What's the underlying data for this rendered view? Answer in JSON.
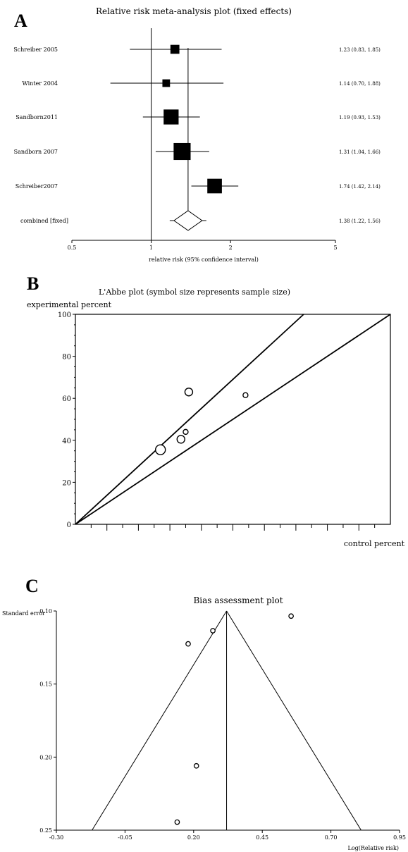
{
  "panels": {
    "a": {
      "letter": "A"
    },
    "b": {
      "letter": "B"
    },
    "c": {
      "letter": "C"
    }
  },
  "chart_data": [
    {
      "type": "forest",
      "title": "Relative risk meta-analysis plot (fixed effects)",
      "xlabel": "relative risk (95% confidence interval)",
      "xscale": "log",
      "xlim": [
        0.5,
        5
      ],
      "xticks": [
        "0.5",
        "1",
        "2",
        "5"
      ],
      "reference_line": 1,
      "studies": [
        {
          "label": "Schreiber 2005",
          "rr": 1.23,
          "lo": 0.83,
          "hi": 1.85,
          "weight": 0.3,
          "text": "1.23 (0.83, 1.85)"
        },
        {
          "label": "Winter 2004",
          "rr": 1.14,
          "lo": 0.7,
          "hi": 1.88,
          "weight": 0.2,
          "text": "1.14 (0.70, 1.88)"
        },
        {
          "label": "Sandborn2011",
          "rr": 1.19,
          "lo": 0.93,
          "hi": 1.53,
          "weight": 0.75,
          "text": "1.19 (0.93, 1.53)"
        },
        {
          "label": "Sandborn 2007",
          "rr": 1.31,
          "lo": 1.04,
          "hi": 1.66,
          "weight": 0.9,
          "text": "1.31 (1.04, 1.66)"
        },
        {
          "label": "Schreiber2007",
          "rr": 1.74,
          "lo": 1.42,
          "hi": 2.14,
          "weight": 0.72,
          "text": "1.74 (1.42, 2.14)"
        }
      ],
      "combined": {
        "label": "combined [fixed]",
        "rr": 1.38,
        "lo": 1.22,
        "hi": 1.56,
        "text": "1.38 (1.22, 1.56)"
      }
    },
    {
      "type": "scatter",
      "title": "L'Abbe plot (symbol size represents sample size)",
      "ylabel": "experimental percent",
      "xlabel": "control percent",
      "xlim": [
        0,
        100
      ],
      "ylim": [
        0,
        100
      ],
      "yticks": [
        0,
        20,
        40,
        60,
        80,
        100
      ],
      "lines": [
        {
          "slope": 1.38
        },
        {
          "slope": 1.0
        }
      ],
      "points": [
        {
          "x": 27,
          "y": 35.5,
          "size": 1.0
        },
        {
          "x": 33.5,
          "y": 40.5,
          "size": 0.7
        },
        {
          "x": 36,
          "y": 63,
          "size": 0.7
        },
        {
          "x": 35,
          "y": 44,
          "size": 0.3
        },
        {
          "x": 54,
          "y": 61.5,
          "size": 0.3
        }
      ]
    },
    {
      "type": "scatter",
      "title": "Bias assessment plot",
      "ylabel": "Standard error",
      "xlabel": "Log(Relative risk)",
      "xlim": [
        -0.3,
        0.95
      ],
      "ylim": [
        0.25,
        0.1
      ],
      "xticks": [
        "-0.30",
        "-0.05",
        "0.20",
        "0.45",
        "0.70",
        "0.95"
      ],
      "yticks": [
        "0.10",
        "0.15",
        "0.20",
        "0.25"
      ],
      "funnel": {
        "center": 0.32,
        "apex_se": 0.1,
        "left_at_bottom": -0.17,
        "right_at_bottom": 0.81
      },
      "points": [
        {
          "x": 0.555,
          "y": 0.1035
        },
        {
          "x": 0.27,
          "y": 0.1135
        },
        {
          "x": 0.18,
          "y": 0.1225
        },
        {
          "x": 0.21,
          "y": 0.206
        },
        {
          "x": 0.14,
          "y": 0.2445
        }
      ]
    }
  ]
}
